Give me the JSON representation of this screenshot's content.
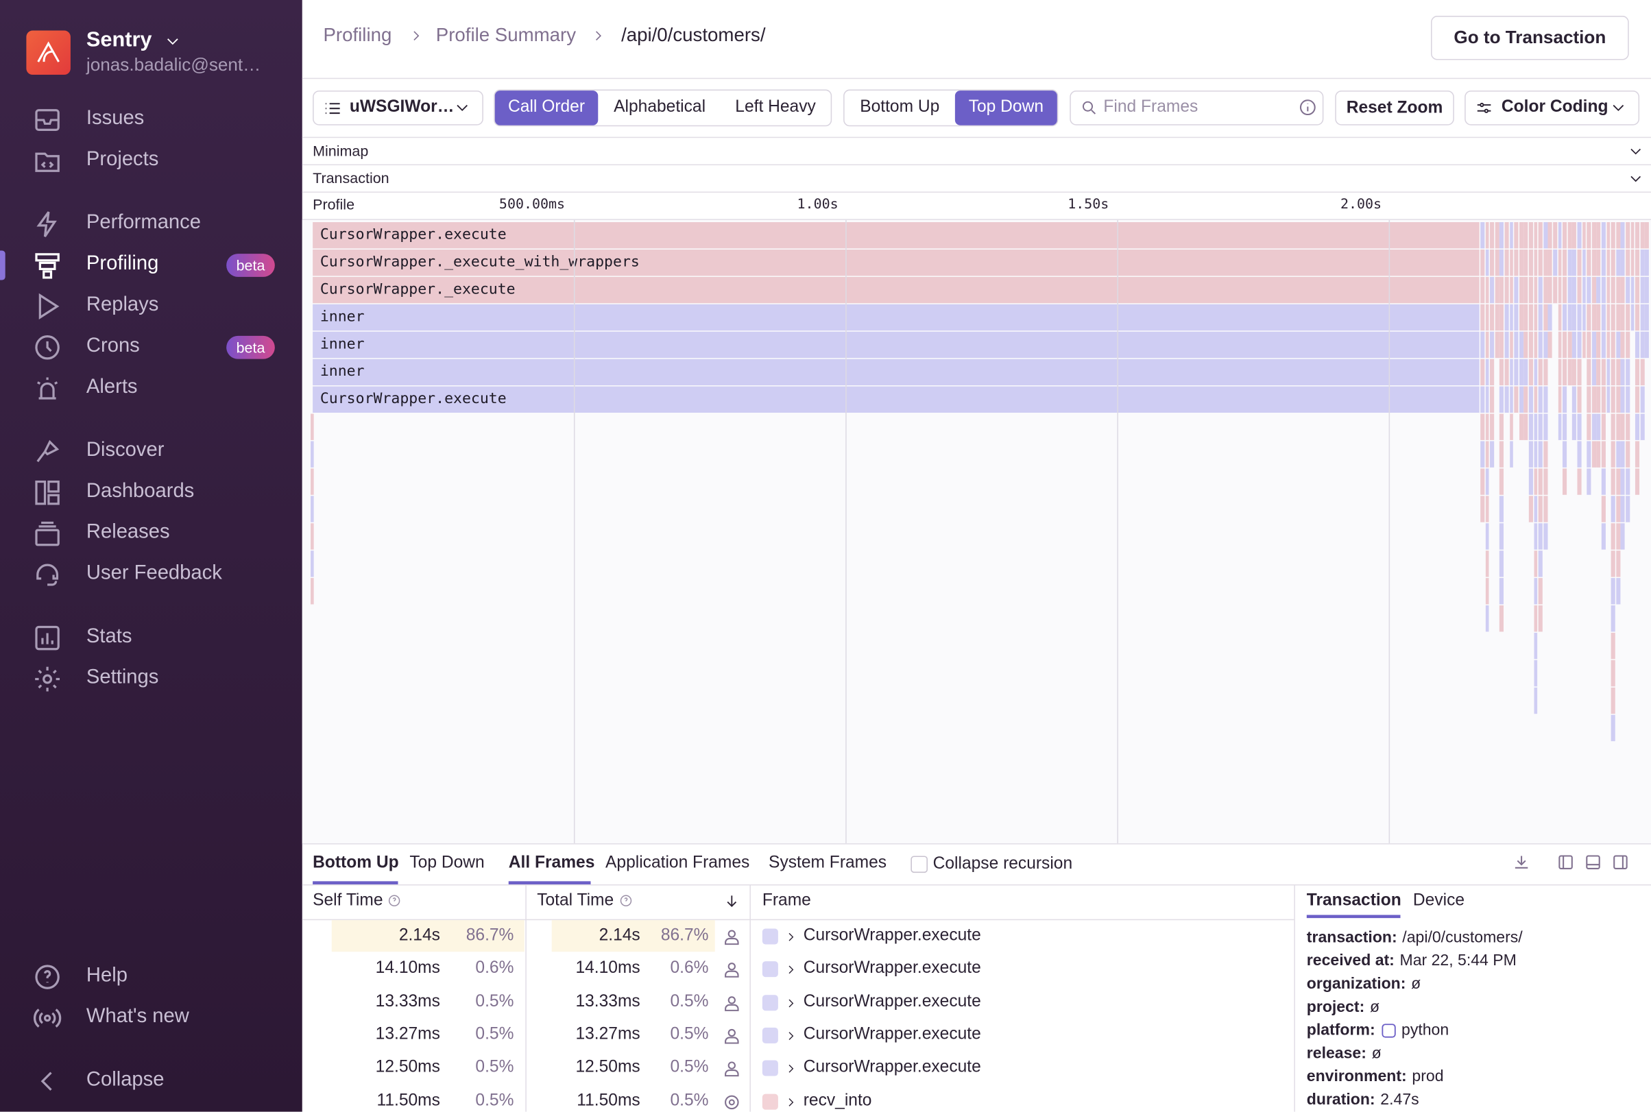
{
  "sidebar": {
    "org": "Sentry",
    "user": "jonas.badalic@sent…",
    "nav": [
      {
        "label": "Issues"
      },
      {
        "label": "Projects"
      },
      {
        "label": "Performance"
      },
      {
        "label": "Profiling",
        "badge": "beta"
      },
      {
        "label": "Replays"
      },
      {
        "label": "Crons",
        "badge": "beta"
      },
      {
        "label": "Alerts"
      },
      {
        "label": "Discover"
      },
      {
        "label": "Dashboards"
      },
      {
        "label": "Releases"
      },
      {
        "label": "User Feedback"
      },
      {
        "label": "Stats"
      },
      {
        "label": "Settings"
      }
    ],
    "footer": [
      {
        "label": "Help"
      },
      {
        "label": "What's new"
      },
      {
        "label": "Collapse"
      }
    ]
  },
  "breadcrumbs": [
    "Profiling",
    "Profile Summary",
    "/api/0/customers/"
  ],
  "header_button": "Go to Transaction",
  "toolbar": {
    "thread": "uWSGIWor…",
    "sort": [
      "Call Order",
      "Alphabetical",
      "Left Heavy"
    ],
    "view": [
      "Bottom Up",
      "Top Down"
    ],
    "search_placeholder": "Find Frames",
    "reset": "Reset Zoom",
    "color_coding": "Color Coding"
  },
  "sections": [
    "Minimap",
    "Transaction"
  ],
  "timeline": {
    "label": "Profile",
    "ticks": [
      "500.00ms",
      "1.00s",
      "1.50s",
      "2.00s"
    ]
  },
  "frames": [
    "CursorWrapper.execute",
    "CursorWrapper._execute_with_wrappers",
    "CursorWrapper._execute",
    "inner",
    "inner",
    "inner",
    "CursorWrapper.execute"
  ],
  "panel": {
    "view_tabs": [
      "Bottom Up",
      "Top Down"
    ],
    "frame_tabs": [
      "All Frames",
      "Application Frames",
      "System Frames"
    ],
    "collapse": "Collapse recursion",
    "columns": [
      "Self Time",
      "Total Time",
      "Frame"
    ],
    "rows": [
      [
        "2.14s",
        "86.7%",
        "2.14s",
        "86.7%",
        "CursorWrapper.execute"
      ],
      [
        "14.10ms",
        "0.6%",
        "14.10ms",
        "0.6%",
        "CursorWrapper.execute"
      ],
      [
        "13.33ms",
        "0.5%",
        "13.33ms",
        "0.5%",
        "CursorWrapper.execute"
      ],
      [
        "13.27ms",
        "0.5%",
        "13.27ms",
        "0.5%",
        "CursorWrapper.execute"
      ],
      [
        "12.50ms",
        "0.5%",
        "12.50ms",
        "0.5%",
        "CursorWrapper.execute"
      ],
      [
        "11.50ms",
        "0.5%",
        "11.50ms",
        "0.5%",
        "recv_into"
      ]
    ]
  },
  "details": {
    "tabs": [
      "Transaction",
      "Device"
    ],
    "fields": [
      [
        "transaction:",
        "/api/0/customers/"
      ],
      [
        "received at:",
        "Mar 22, 5:44 PM"
      ],
      [
        "organization:",
        "ø"
      ],
      [
        "project:",
        "ø"
      ],
      [
        "platform:",
        "python"
      ],
      [
        "release:",
        "ø"
      ],
      [
        "environment:",
        "prod"
      ],
      [
        "duration:",
        "2.47s"
      ]
    ]
  }
}
